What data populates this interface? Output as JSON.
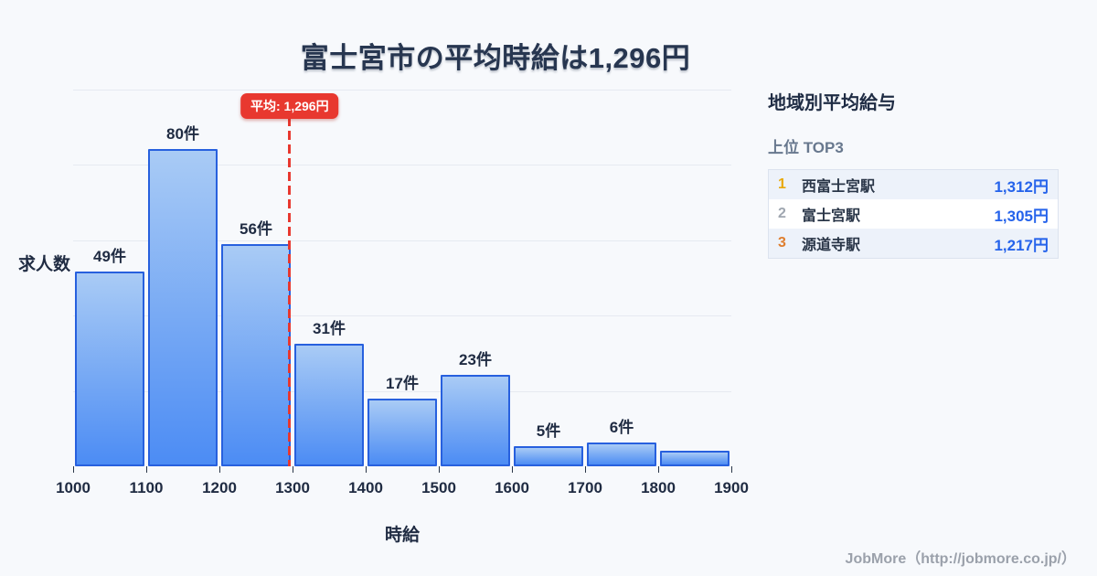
{
  "title": "富士宮市の平均時給は1,296円",
  "chart_data": {
    "type": "bar",
    "subtype": "histogram",
    "bin_edges": [
      1000,
      1100,
      1200,
      1300,
      1400,
      1500,
      1600,
      1700,
      1800,
      1900
    ],
    "categories": [
      "1000-1100",
      "1100-1200",
      "1200-1300",
      "1300-1400",
      "1400-1500",
      "1500-1600",
      "1600-1700",
      "1700-1800",
      "1800-1900"
    ],
    "values": [
      49,
      80,
      56,
      31,
      17,
      23,
      5,
      6,
      4
    ],
    "bar_labels": [
      "49件",
      "80件",
      "56件",
      "31件",
      "17件",
      "23件",
      "5件",
      "6件",
      ""
    ],
    "x_tick_labels": [
      "1000",
      "1100",
      "1200",
      "1300",
      "1400",
      "1500",
      "1600",
      "1700",
      "1800",
      "1900"
    ],
    "xlabel": "時給",
    "ylabel": "求人数",
    "xlim": [
      1000,
      1900
    ],
    "ylim": [
      0,
      95
    ],
    "grid": "horizontal",
    "average_line": {
      "value": 1296,
      "label": "平均: 1,296円"
    }
  },
  "side_panel": {
    "title": "地域別平均給与",
    "subtitle": "上位 TOP3",
    "rows": [
      {
        "rank": "1",
        "name": "西富士宮駅",
        "value": "1,312円"
      },
      {
        "rank": "2",
        "name": "富士宮駅",
        "value": "1,305円"
      },
      {
        "rank": "3",
        "name": "源道寺駅",
        "value": "1,217円"
      }
    ]
  },
  "footer": {
    "credit": "JobMore（http://jobmore.co.jp/）"
  },
  "colors": {
    "background": "#F7F9FC",
    "bar_gradient_top": "#A9CBF5",
    "bar_gradient_bottom": "#4C8CF4",
    "bar_border": "#2760DE",
    "average_red": "#E8382F",
    "value_blue": "#2563EB",
    "rank1": "#E9A90C",
    "rank2": "#9FA6B0",
    "rank3": "#DF7E2E",
    "gridline": "#E6EAF1"
  }
}
